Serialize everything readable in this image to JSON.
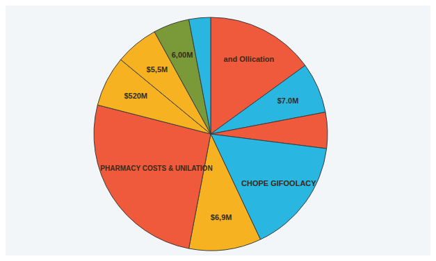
{
  "chart_data": {
    "type": "pie",
    "categories": [
      "and Ollication",
      "$7.0M",
      null,
      "CHOPE GIFOOLACY",
      "$6,9M",
      "PHARMACY COSTS & UNILATION",
      "$520M",
      "$5,5M",
      "6,00M",
      null
    ],
    "values": [
      15,
      7,
      5,
      16,
      10,
      26,
      7,
      6,
      5,
      3
    ],
    "colors": [
      "#ef5a3c",
      "#29b6e0",
      "#ef5a3c",
      "#29b6e0",
      "#f6b221",
      "#ef5a3c",
      "#f6b221",
      "#f6b221",
      "#7a9a3a",
      "#29b6e0"
    ]
  }
}
